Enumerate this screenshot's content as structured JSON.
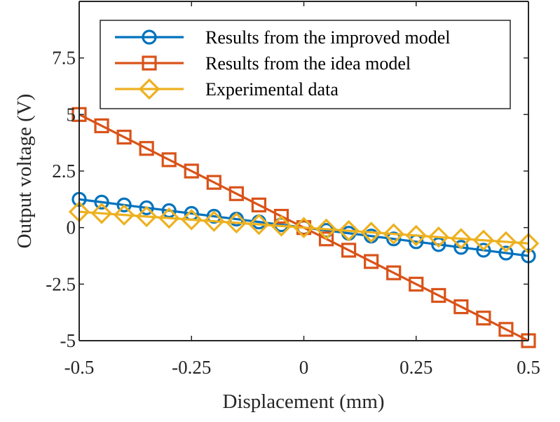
{
  "chart_data": {
    "type": "line",
    "title": "",
    "xlabel": "Displacement (mm)",
    "ylabel": "Output voltage (V)",
    "xlim": [
      -0.5,
      0.5
    ],
    "ylim": [
      -5,
      10
    ],
    "xticks": [
      -0.5,
      -0.25,
      0,
      0.25,
      0.5
    ],
    "xtick_labels": [
      "-0.5",
      "-0.25",
      "0",
      "0.25",
      "0.5"
    ],
    "yticks": [
      -5,
      -2.5,
      0,
      2.5,
      5,
      7.5
    ],
    "ytick_labels": [
      "-5",
      "-2.5",
      "0",
      "2.5",
      "5",
      "7.5"
    ],
    "grid": false,
    "legend_position": "top-right",
    "x": [
      -0.5,
      -0.45,
      -0.4,
      -0.35,
      -0.3,
      -0.25,
      -0.2,
      -0.15,
      -0.1,
      -0.05,
      0,
      0.05,
      0.1,
      0.15,
      0.2,
      0.25,
      0.3,
      0.35,
      0.4,
      0.45,
      0.5
    ],
    "series": [
      {
        "name": "Results from the improved model",
        "color": "#0072BD",
        "marker": "circle",
        "values": [
          1.25,
          1.125,
          1.0,
          0.875,
          0.75,
          0.625,
          0.5,
          0.375,
          0.25,
          0.125,
          0,
          -0.125,
          -0.25,
          -0.375,
          -0.5,
          -0.625,
          -0.75,
          -0.875,
          -1.0,
          -1.125,
          -1.25
        ]
      },
      {
        "name": "Results from the idea model",
        "color": "#D95319",
        "marker": "square",
        "values": [
          5.0,
          4.5,
          4.0,
          3.5,
          3.0,
          2.5,
          2.0,
          1.5,
          1.0,
          0.5,
          0,
          -0.5,
          -1.0,
          -1.5,
          -2.0,
          -2.5,
          -3.0,
          -3.5,
          -4.0,
          -4.5,
          -5.0
        ]
      },
      {
        "name": "Experimental data",
        "color": "#EDB120",
        "marker": "diamond",
        "values": [
          0.7,
          0.63,
          0.56,
          0.49,
          0.42,
          0.35,
          0.28,
          0.21,
          0.14,
          0.07,
          0,
          -0.07,
          -0.14,
          -0.21,
          -0.28,
          -0.35,
          -0.42,
          -0.49,
          -0.56,
          -0.63,
          -0.7
        ]
      }
    ]
  }
}
